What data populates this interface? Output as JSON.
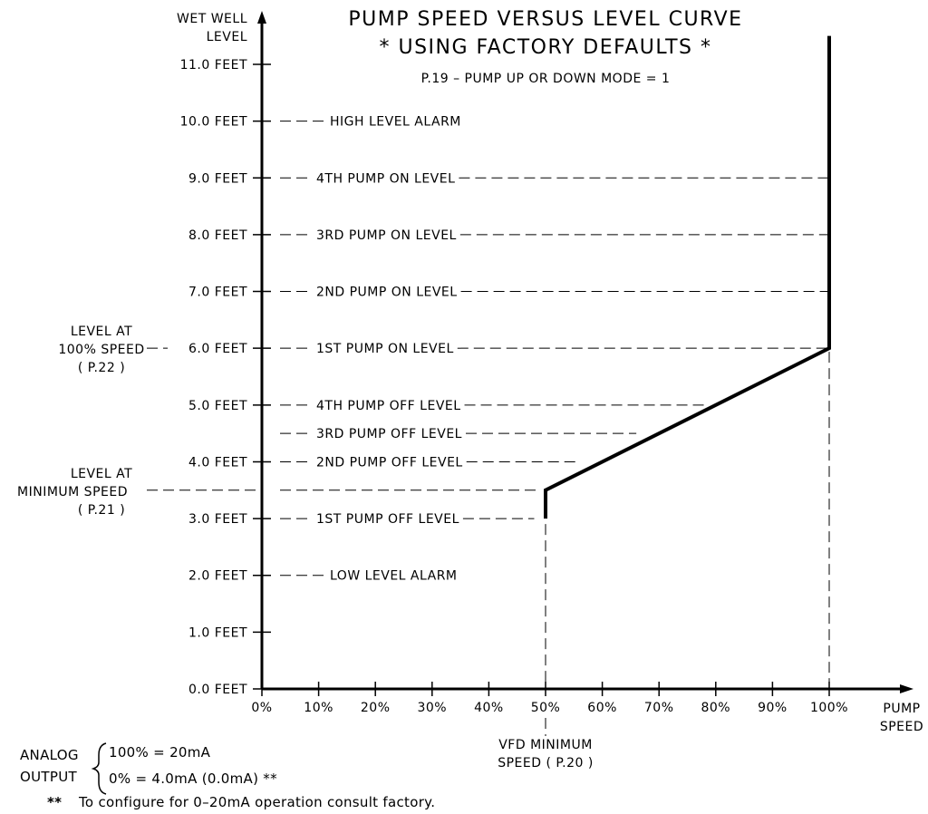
{
  "chart_data": {
    "type": "line",
    "title": "PUMP SPEED VERSUS LEVEL CURVE",
    "subtitle": "* USING FACTORY DEFAULTS *",
    "mode_note": "P.19 – PUMP UP OR DOWN MODE = 1",
    "ylabel": [
      "WET WELL",
      "LEVEL"
    ],
    "xlabel": [
      "PUMP",
      "SPEED"
    ],
    "xlim": [
      0,
      100
    ],
    "ylim": [
      0,
      11
    ],
    "x_ticks": [
      {
        "value": 0,
        "label": "0%"
      },
      {
        "value": 10,
        "label": "10%"
      },
      {
        "value": 20,
        "label": "20%"
      },
      {
        "value": 30,
        "label": "30%"
      },
      {
        "value": 40,
        "label": "40%"
      },
      {
        "value": 50,
        "label": "50%"
      },
      {
        "value": 60,
        "label": "60%"
      },
      {
        "value": 70,
        "label": "70%"
      },
      {
        "value": 80,
        "label": "80%"
      },
      {
        "value": 90,
        "label": "90%"
      },
      {
        "value": 100,
        "label": "100%"
      }
    ],
    "y_ticks": [
      {
        "value": 0,
        "label": "0.0 FEET"
      },
      {
        "value": 1,
        "label": "1.0 FEET"
      },
      {
        "value": 2,
        "label": "2.0 FEET"
      },
      {
        "value": 3,
        "label": "3.0 FEET"
      },
      {
        "value": 4,
        "label": "4.0 FEET"
      },
      {
        "value": 5,
        "label": "5.0 FEET"
      },
      {
        "value": 6,
        "label": "6.0 FEET"
      },
      {
        "value": 7,
        "label": "7.0 FEET"
      },
      {
        "value": 8,
        "label": "8.0 FEET"
      },
      {
        "value": 9,
        "label": "9.0 FEET"
      },
      {
        "value": 10,
        "label": "10.0 FEET"
      },
      {
        "value": 11,
        "label": "11.0 FEET"
      }
    ],
    "series": [
      {
        "points": [
          [
            50,
            3.0
          ],
          [
            50,
            3.5
          ],
          [
            100,
            6.0
          ],
          [
            100,
            11.5
          ]
        ]
      }
    ],
    "levels": [
      {
        "name": "HIGH LEVEL ALARM",
        "value": 10.0,
        "line_end": 0
      },
      {
        "name": "4TH PUMP ON LEVEL",
        "value": 9.0,
        "line_end": 100
      },
      {
        "name": "3RD PUMP ON LEVEL",
        "value": 8.0,
        "line_end": 100
      },
      {
        "name": "2ND PUMP ON LEVEL",
        "value": 7.0,
        "line_end": 100
      },
      {
        "name": "1ST PUMP ON LEVEL",
        "value": 6.0,
        "line_end": 100
      },
      {
        "name": "4TH PUMP OFF LEVEL",
        "value": 5.0,
        "line_end": 78
      },
      {
        "name": "3RD PUMP OFF LEVEL",
        "value": 4.5,
        "line_end": 66
      },
      {
        "name": "2ND PUMP OFF LEVEL",
        "value": 4.0,
        "line_end": 56
      },
      {
        "name": "1ST PUMP OFF LEVEL",
        "value": 3.0,
        "line_end": 48
      },
      {
        "name": "LOW LEVEL ALARM",
        "value": 2.0,
        "line_end": 0
      }
    ],
    "annotations": {
      "level_100": {
        "lines": [
          "LEVEL AT",
          "100% SPEED",
          "( P.22 )"
        ],
        "value": 6.0
      },
      "level_min": {
        "lines": [
          "LEVEL AT",
          "MINIMUM SPEED",
          "( P.21 )"
        ],
        "value": 3.5
      },
      "vfd_min": {
        "lines": [
          "VFD MINIMUM",
          "SPEED ( P.20 )"
        ],
        "value": 50
      }
    },
    "grid": false
  },
  "notes": {
    "analog_label": [
      "ANALOG",
      "OUTPUT"
    ],
    "analog_high": "100% = 20mA",
    "analog_low": "0% = 4.0mA (0.0mA) **",
    "footnote_mark": "**",
    "footnote_text": "To configure for 0–20mA operation consult factory."
  }
}
